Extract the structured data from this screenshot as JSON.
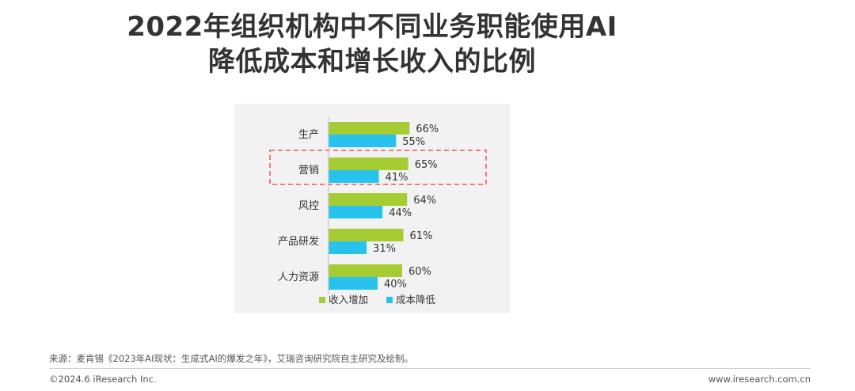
{
  "title": {
    "line1": "2022年组织机构中不同业务职能使用AI",
    "line2": "降低成本和增长收入的比例"
  },
  "colors": {
    "revenue": "#a6cc34",
    "cost": "#27c3ee",
    "highlight": "#ef7b7b",
    "panel": "#f2f2f2"
  },
  "chart_data": {
    "type": "bar",
    "orientation": "horizontal",
    "categories": [
      "生产",
      "营销",
      "风控",
      "产品研发",
      "人力资源"
    ],
    "series": [
      {
        "name": "收入增加",
        "values": [
          66,
          65,
          64,
          61,
          60
        ],
        "labels": [
          "66%",
          "65%",
          "64%",
          "61%",
          "60%"
        ]
      },
      {
        "name": "成本降低",
        "values": [
          55,
          41,
          44,
          31,
          40
        ],
        "labels": [
          "55%",
          "41%",
          "44%",
          "31%",
          "40%"
        ]
      }
    ],
    "highlighted_category": "营销",
    "legend_position": "bottom",
    "grid": false,
    "xlim": [
      0,
      100
    ]
  },
  "footer": {
    "source": "来源：麦肯锡《2023年AI现状：生成式AI的爆发之年》，艾瑞咨询研究院自主研究及绘制。",
    "copyright": "©2024.6 iResearch Inc.",
    "url": "www.iresearch.com.cn"
  }
}
